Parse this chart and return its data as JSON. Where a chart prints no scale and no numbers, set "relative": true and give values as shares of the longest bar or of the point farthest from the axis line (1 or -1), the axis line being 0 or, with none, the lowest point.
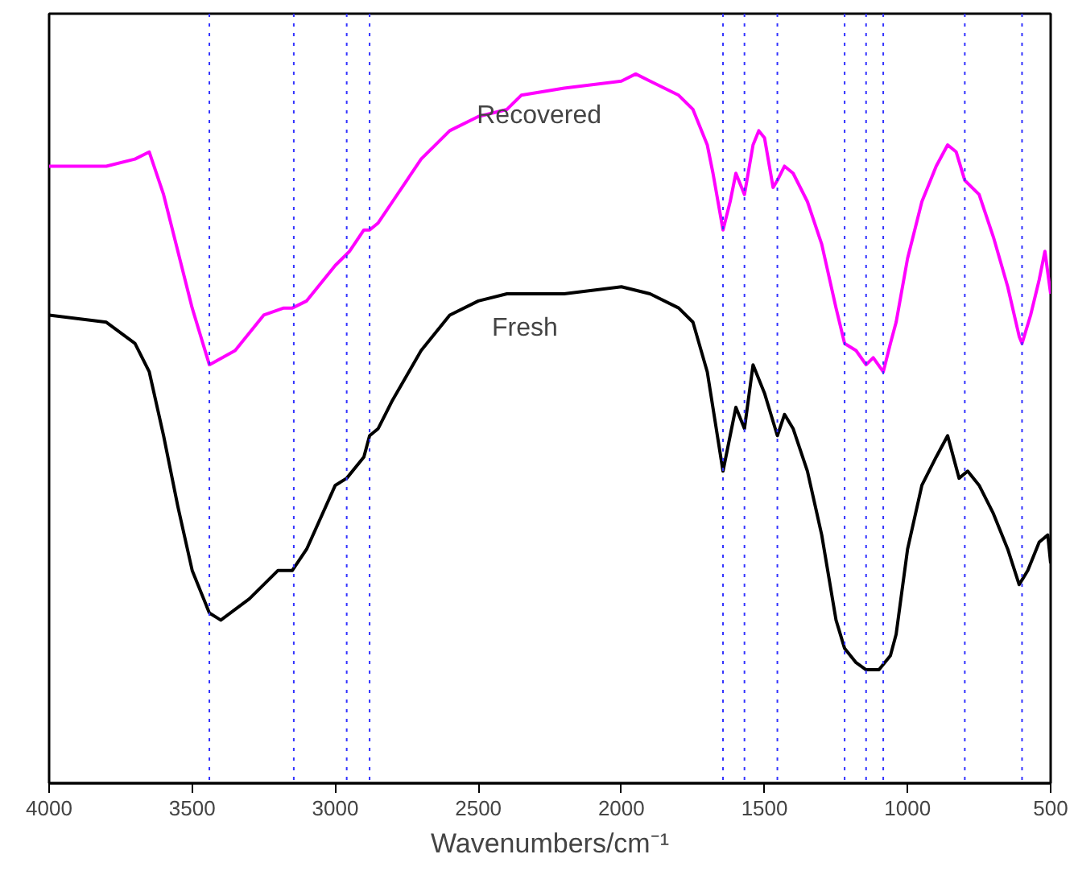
{
  "chart_data": {
    "type": "line",
    "relative": true,
    "xlabel": "Wavenumbers/cm⁻¹",
    "x": [
      4000,
      3800,
      3700,
      3650,
      3600,
      3550,
      3500,
      3440,
      3400,
      3300,
      3200,
      3150,
      3100,
      3000,
      2960,
      2900,
      2880,
      2850,
      2800,
      2700,
      2600,
      2500,
      2400,
      2350,
      2200,
      2000,
      1900,
      1800,
      1750,
      1700,
      1645,
      1620,
      1600,
      1570,
      1540,
      1500,
      1455,
      1430,
      1400,
      1350,
      1300,
      1250,
      1220,
      1180,
      1145,
      1100,
      1060,
      1040,
      1000,
      950,
      900,
      860,
      820,
      790,
      750,
      700,
      650,
      610,
      580,
      540,
      510,
      500
    ],
    "xlim": [
      4000,
      500
    ],
    "xticks": [
      4000,
      3500,
      3000,
      2500,
      2000,
      1500,
      1000,
      500
    ],
    "series": [
      {
        "name": "Recovered",
        "color": "#ff00ff",
        "x": [
          4000,
          3800,
          3700,
          3650,
          3600,
          3500,
          3440,
          3350,
          3250,
          3180,
          3150,
          3100,
          3000,
          2950,
          2900,
          2880,
          2850,
          2800,
          2700,
          2600,
          2500,
          2400,
          2350,
          2200,
          2000,
          1950,
          1900,
          1800,
          1750,
          1700,
          1680,
          1645,
          1620,
          1600,
          1570,
          1540,
          1520,
          1500,
          1470,
          1455,
          1430,
          1400,
          1350,
          1300,
          1250,
          1220,
          1180,
          1145,
          1120,
          1085,
          1060,
          1040,
          1000,
          950,
          900,
          860,
          830,
          800,
          750,
          700,
          650,
          610,
          600,
          570,
          540,
          520,
          500
        ],
        "values": [
          0.87,
          0.87,
          0.88,
          0.89,
          0.83,
          0.67,
          0.59,
          0.61,
          0.66,
          0.67,
          0.67,
          0.68,
          0.73,
          0.75,
          0.78,
          0.78,
          0.79,
          0.82,
          0.88,
          0.92,
          0.94,
          0.95,
          0.97,
          0.98,
          0.99,
          1.0,
          0.99,
          0.97,
          0.95,
          0.9,
          0.86,
          0.78,
          0.82,
          0.86,
          0.83,
          0.9,
          0.92,
          0.91,
          0.84,
          0.85,
          0.87,
          0.86,
          0.82,
          0.76,
          0.67,
          0.62,
          0.61,
          0.59,
          0.6,
          0.58,
          0.62,
          0.65,
          0.74,
          0.82,
          0.87,
          0.9,
          0.89,
          0.85,
          0.83,
          0.77,
          0.7,
          0.63,
          0.62,
          0.66,
          0.71,
          0.75,
          0.69
        ]
      },
      {
        "name": "Fresh",
        "color": "#000000",
        "values": [
          0.66,
          0.65,
          0.62,
          0.58,
          0.49,
          0.39,
          0.3,
          0.24,
          0.23,
          0.26,
          0.3,
          0.3,
          0.33,
          0.42,
          0.43,
          0.46,
          0.49,
          0.5,
          0.54,
          0.61,
          0.66,
          0.68,
          0.69,
          0.69,
          0.69,
          0.7,
          0.69,
          0.67,
          0.65,
          0.58,
          0.44,
          0.49,
          0.53,
          0.5,
          0.59,
          0.55,
          0.49,
          0.52,
          0.5,
          0.44,
          0.35,
          0.23,
          0.19,
          0.17,
          0.16,
          0.16,
          0.18,
          0.21,
          0.33,
          0.42,
          0.46,
          0.49,
          0.43,
          0.44,
          0.42,
          0.38,
          0.33,
          0.28,
          0.3,
          0.34,
          0.35,
          0.31
        ]
      }
    ],
    "ref_lines": [
      {
        "axis": "x",
        "value": 3440,
        "color": "#3333ff",
        "line_style": "dotted"
      },
      {
        "axis": "x",
        "value": 3145,
        "color": "#3333ff",
        "line_style": "dotted"
      },
      {
        "axis": "x",
        "value": 2960,
        "color": "#3333ff",
        "line_style": "dotted"
      },
      {
        "axis": "x",
        "value": 2880,
        "color": "#3333ff",
        "line_style": "dotted"
      },
      {
        "axis": "x",
        "value": 1645,
        "color": "#3333ff",
        "line_style": "dotted"
      },
      {
        "axis": "x",
        "value": 1570,
        "color": "#3333ff",
        "line_style": "dotted"
      },
      {
        "axis": "x",
        "value": 1455,
        "color": "#3333ff",
        "line_style": "dotted"
      },
      {
        "axis": "x",
        "value": 1220,
        "color": "#3333ff",
        "line_style": "dotted"
      },
      {
        "axis": "x",
        "value": 1145,
        "color": "#3333ff",
        "line_style": "dotted"
      },
      {
        "axis": "x",
        "value": 1085,
        "color": "#3333ff",
        "line_style": "dotted"
      },
      {
        "axis": "x",
        "value": 800,
        "color": "#3333ff",
        "line_style": "dotted"
      },
      {
        "axis": "x",
        "value": 600,
        "color": "#3333ff",
        "line_style": "dotted"
      }
    ],
    "grid": false
  }
}
